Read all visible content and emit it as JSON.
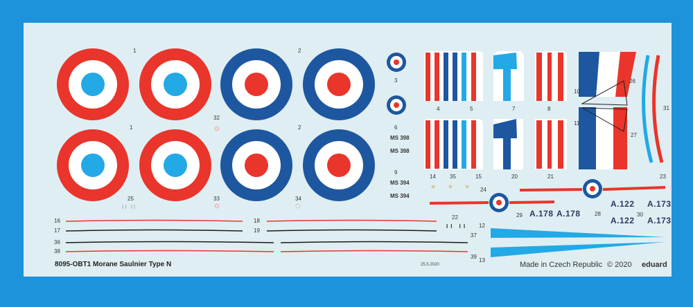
{
  "sheet": {
    "title": "8095-OBT1 Morane Saulnier Type N",
    "date": "25.5.2020",
    "made_in": "Made in Czech Republic",
    "copyright": "© 2020",
    "brand": "eduard"
  },
  "colors": {
    "background": "#1e92da",
    "sheet": "#dfeef2",
    "french_red": "#e9352b",
    "french_blue": "#1d57a0",
    "light_blue": "#22a9e6",
    "white": "#ffffff",
    "black": "#1a1a1a"
  },
  "numbers": {
    "n1a": "1",
    "n1b": "1",
    "n2a": "2",
    "n2b": "2",
    "n3": "3",
    "n4": "4",
    "n5": "5",
    "n6": "6",
    "n7": "7",
    "n8": "8",
    "n9": "9",
    "n10": "10",
    "n11": "11",
    "n12": "12",
    "n13": "13",
    "n14": "14",
    "n15": "15",
    "n16": "16",
    "n17": "17",
    "n18": "18",
    "n19": "19",
    "n20": "20",
    "n21": "21",
    "n22": "22",
    "n23": "23",
    "n24": "24",
    "n25": "25",
    "n26": "26",
    "n27": "27",
    "n28": "28",
    "n29": "29",
    "n30": "30",
    "n31": "31",
    "n32": "32",
    "n33": "33",
    "n34": "34",
    "n35": "35",
    "n36": "36",
    "n37": "37",
    "n38": "38",
    "n39": "39"
  },
  "serials": {
    "ms398a": "MS 398",
    "ms398b": "MS 398",
    "ms394a": "MS 394",
    "ms394b": "MS 394"
  },
  "registrations": {
    "a178a": "A.178",
    "a178b": "A.178",
    "a122a": "A.122",
    "a122b": "A.122",
    "a173a": "A.173",
    "a173b": "A.173"
  },
  "small_marks": {
    "m25": "II II",
    "m22": "II II"
  },
  "icons": [
    "roundel-red-outer",
    "roundel-blue-outer",
    "tricolor-stripe",
    "propeller",
    "windscreen"
  ]
}
